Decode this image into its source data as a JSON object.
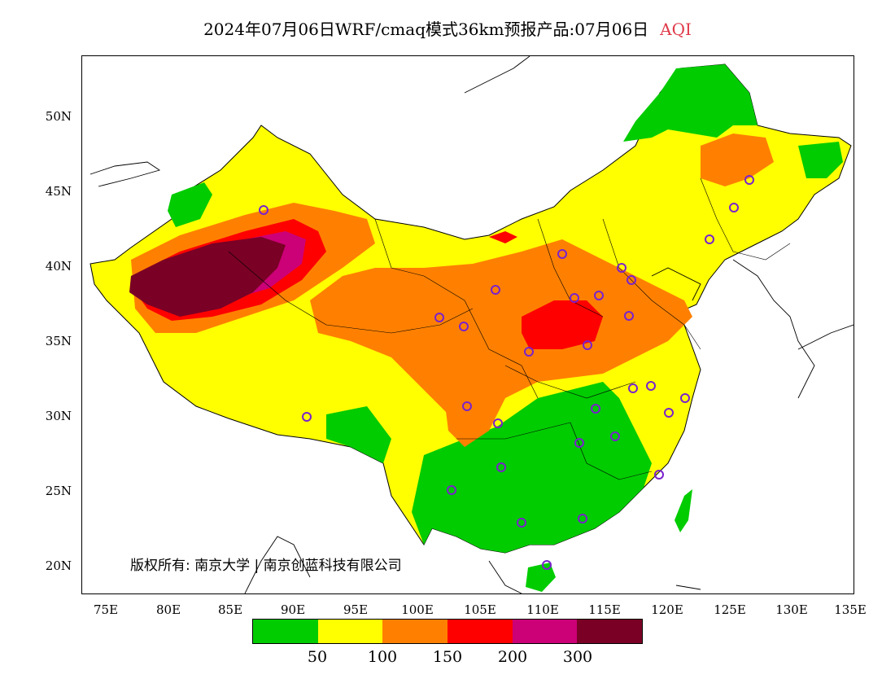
{
  "title": {
    "main": "2024年07月06日WRF/cmaq模式36km预报产品:07月06日",
    "product": "AQI"
  },
  "map": {
    "lat_labels": [
      "50N",
      "45N",
      "40N",
      "35N",
      "30N",
      "25N",
      "20N"
    ],
    "lon_labels": [
      "75E",
      "80E",
      "85E",
      "90E",
      "95E",
      "100E",
      "105E",
      "110E",
      "115E",
      "120E",
      "125E",
      "130E",
      "135E"
    ],
    "extent": {
      "lon": [
        73,
        135
      ],
      "lat": [
        18,
        54
      ]
    },
    "fill_colors": {
      "ocean": "#ffffff",
      "land_outside": "#ffffff"
    },
    "station_marker_color": "#7a22cc"
  },
  "copyright": "版权所有: 南京大学 | 南京创蓝科技有限公司",
  "colorbar": {
    "colors": [
      "#00cc00",
      "#ffff00",
      "#ff8000",
      "#ff0000",
      "#cc0077",
      "#7a0026"
    ],
    "labels": [
      "50",
      "100",
      "150",
      "200",
      "300"
    ]
  }
}
